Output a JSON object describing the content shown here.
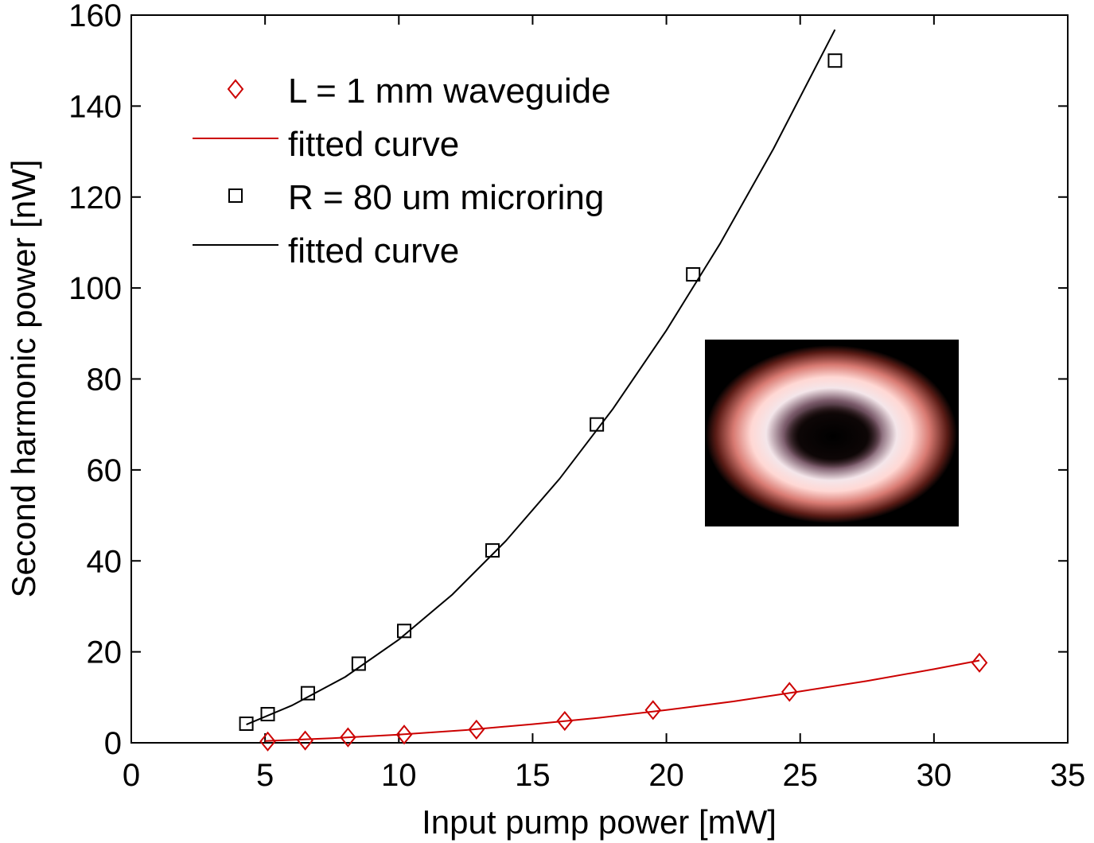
{
  "chart_data": {
    "type": "scatter",
    "title": "",
    "xlabel": "Input pump power [mW]",
    "ylabel": "Second harmonic power [nW]",
    "xlim": [
      0,
      35
    ],
    "ylim": [
      0,
      160
    ],
    "xticks": [
      0,
      5,
      10,
      15,
      20,
      25,
      30,
      35
    ],
    "yticks": [
      0,
      20,
      40,
      60,
      80,
      100,
      120,
      140,
      160
    ],
    "grid": false,
    "legend_position": "top-left",
    "series": [
      {
        "name": "L = 1 mm waveguide",
        "kind": "markers",
        "marker": "diamond",
        "color": "#cc0000",
        "x": [
          5.1,
          6.5,
          8.1,
          10.2,
          12.9,
          16.2,
          19.5,
          24.6,
          31.7
        ],
        "y": [
          0.3,
          0.5,
          1.2,
          1.8,
          2.9,
          4.8,
          7.2,
          11.2,
          17.6
        ]
      },
      {
        "name": "fitted curve",
        "kind": "line",
        "color": "#cc0000",
        "x": [
          5.0,
          7.5,
          10.0,
          12.5,
          15.0,
          17.5,
          20.0,
          22.5,
          25.0,
          27.5,
          30.0,
          31.7
        ],
        "y": [
          0.4,
          1.0,
          1.8,
          2.8,
          4.1,
          5.5,
          7.2,
          9.1,
          11.3,
          13.6,
          16.2,
          18.1
        ]
      },
      {
        "name": "R = 80 um microring",
        "kind": "markers",
        "marker": "square",
        "color": "#000000",
        "x": [
          4.3,
          5.1,
          6.6,
          8.5,
          10.2,
          13.5,
          17.4,
          21.0,
          26.3
        ],
        "y": [
          4.2,
          6.3,
          10.9,
          17.4,
          24.6,
          42.3,
          70.0,
          103.0,
          150.0
        ]
      },
      {
        "name": "fitted curve",
        "kind": "line",
        "color": "#000000",
        "x": [
          4.3,
          6.0,
          8.0,
          10.0,
          12.0,
          14.0,
          16.0,
          18.0,
          20.0,
          22.0,
          24.0,
          26.3
        ],
        "y": [
          4.0,
          8.2,
          14.5,
          22.7,
          32.6,
          44.4,
          58.0,
          73.4,
          90.7,
          109.7,
          130.6,
          156.8
        ]
      }
    ],
    "inset_image": "microring-photo"
  }
}
